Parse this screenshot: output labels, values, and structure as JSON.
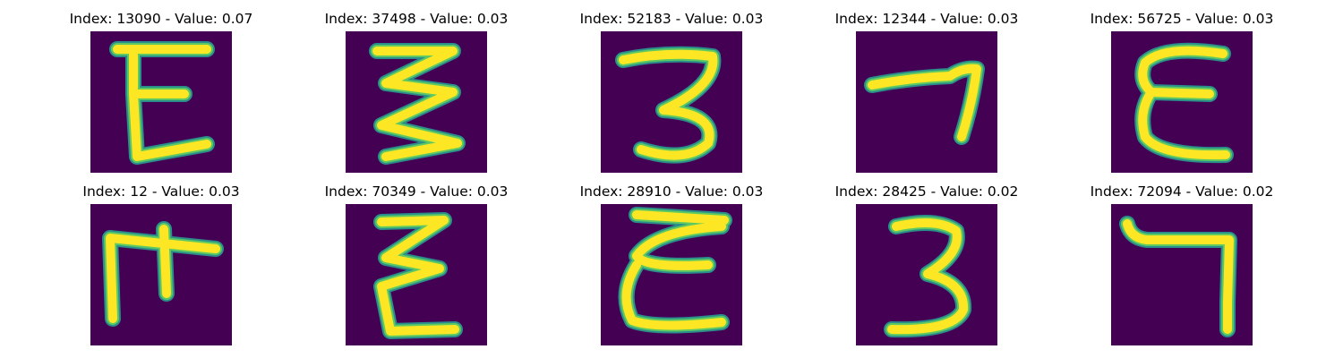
{
  "panels": [
    {
      "title": "Index: 13090 - Value: 0.07",
      "glyph": "e-glyph"
    },
    {
      "title": "Index: 37498 - Value: 0.03",
      "glyph": "zigzag-glyph"
    },
    {
      "title": "Index: 52183 - Value: 0.03",
      "glyph": "three-glyph"
    },
    {
      "title": "Index: 12344 - Value: 0.03",
      "glyph": "seven-glyph"
    },
    {
      "title": "Index: 56725 - Value: 0.03",
      "glyph": "e-glyph"
    },
    {
      "title": "Index: 12 - Value: 0.03",
      "glyph": "hook-glyph"
    },
    {
      "title": "Index: 70349 - Value: 0.03",
      "glyph": "zigzag-glyph"
    },
    {
      "title": "Index: 28910 - Value: 0.03",
      "glyph": "e-glyph"
    },
    {
      "title": "Index: 28425 - Value: 0.02",
      "glyph": "three-glyph"
    },
    {
      "title": "Index: 72094 - Value: 0.02",
      "glyph": "seven-glyph"
    }
  ],
  "colors": {
    "background": "#440154",
    "stroke_core": "#fde725",
    "stroke_mid": "#5ec962",
    "stroke_edge": "#2a8f8a"
  }
}
